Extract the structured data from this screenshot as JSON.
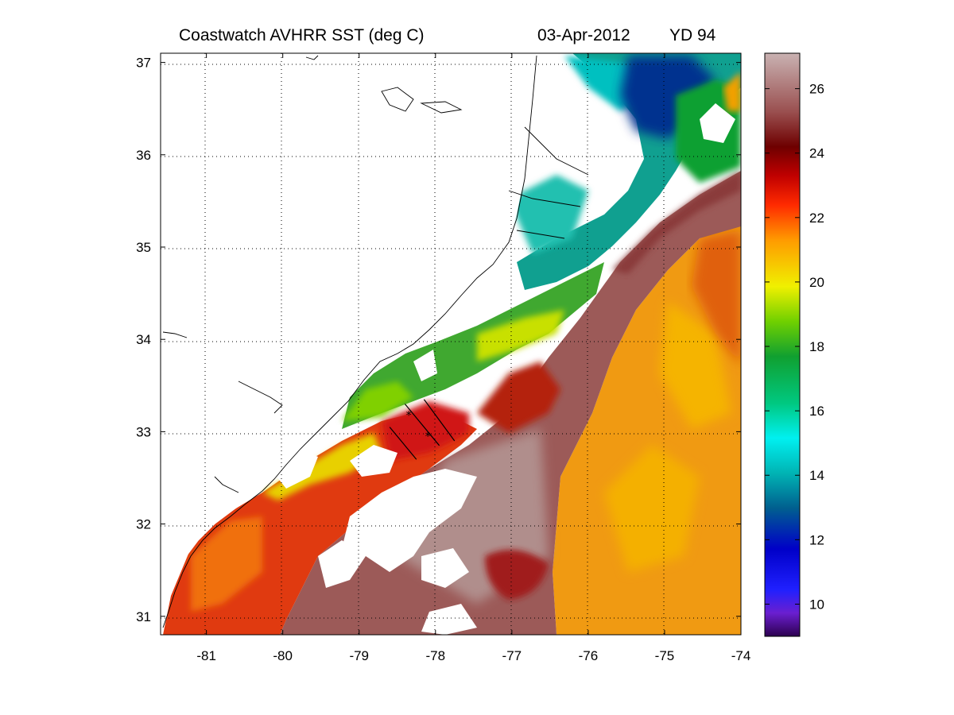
{
  "title": {
    "product": "Coastwatch   AVHRR   SST  (deg C)",
    "date": "03-Apr-2012",
    "yearday": "YD 94"
  },
  "map": {
    "lon_range": [
      -81.6,
      -74.0
    ],
    "lat_range": [
      30.8,
      37.1
    ],
    "lon_ticks": [
      -81,
      -80,
      -79,
      -78,
      -77,
      -76,
      -75,
      -74
    ],
    "lat_ticks": [
      31,
      32,
      33,
      34,
      35,
      36,
      37
    ],
    "lon_tick_labels": [
      "-81",
      "-80",
      "-79",
      "-78",
      "-77",
      "-76",
      "-75",
      "-74"
    ],
    "lat_tick_labels": [
      "31",
      "32",
      "33",
      "34",
      "35",
      "36",
      "37"
    ],
    "grid": "dotted"
  },
  "colorbar": {
    "range": [
      9,
      27.1
    ],
    "ticks": [
      10,
      12,
      14,
      16,
      18,
      20,
      22,
      24,
      26
    ],
    "tick_labels": [
      "10",
      "12",
      "14",
      "16",
      "18",
      "20",
      "22",
      "24",
      "26"
    ],
    "colors": [
      "#2d004f",
      "#6a1fd0",
      "#2020ff",
      "#0000c8",
      "#005f8f",
      "#00b4b4",
      "#00f0f0",
      "#00c880",
      "#10a030",
      "#70d000",
      "#f0f000",
      "#ff9a00",
      "#ff2a00",
      "#c00000",
      "#6e0000",
      "#9a5050",
      "#c9b2b2"
    ]
  },
  "transects": [
    {
      "start": [
        -78.6,
        33.05
      ],
      "end": [
        -78.25,
        32.7
      ]
    },
    {
      "start": [
        -78.4,
        33.3
      ],
      "end": [
        -77.95,
        32.85
      ]
    },
    {
      "start": [
        -78.15,
        33.35
      ],
      "end": [
        -77.75,
        32.9
      ]
    }
  ],
  "stations": [
    {
      "lon": -78.35,
      "lat": 33.18
    },
    {
      "lon": -78.1,
      "lat": 32.95
    }
  ]
}
